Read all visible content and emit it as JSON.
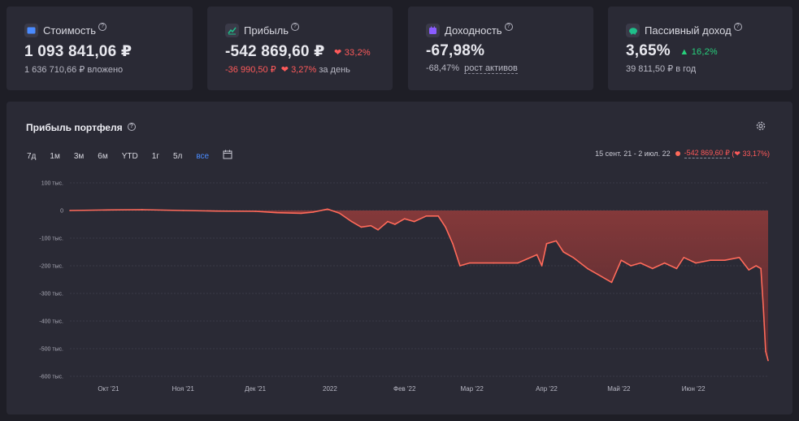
{
  "cards": [
    {
      "title": "Стоимость",
      "value": "1 093 841,06 ₽",
      "sub": "1 636 710,66 ₽ вложено",
      "icon": "wallet-icon",
      "icon_color": "#4a8bff"
    },
    {
      "title": "Прибыль",
      "value": "-542 869,60 ₽",
      "change": "33,2%",
      "sub_value": "-36 990,50 ₽",
      "sub_change": "3,27%",
      "sub_suffix": "за день",
      "icon": "chart-icon",
      "icon_color": "#1fbf8a"
    },
    {
      "title": "Доходность",
      "value": "-67,98%",
      "sub_value": "-68,47%",
      "sub_link": "рост активов",
      "icon": "calendar-icon",
      "icon_color": "#8a5cff"
    },
    {
      "title": "Пассивный доход",
      "value": "3,65%",
      "change": "16,2%",
      "sub": "39 811,50 ₽ в год",
      "icon": "piggy-bank-icon",
      "icon_color": "#1fbf8a"
    }
  ],
  "panel": {
    "title": "Прибыль портфеля",
    "ranges": [
      "7д",
      "1м",
      "3м",
      "6м",
      "YTD",
      "1г",
      "5л",
      "все"
    ],
    "active_range": "все",
    "summary_period": "15 сент. 21 - 2 июл. 22",
    "summary_value": "-542 869,60 ₽",
    "summary_change": "33,17%"
  },
  "chart_data": {
    "type": "area",
    "y_tick_labels": [
      "100 тыс.",
      "0",
      "-100 тыс.",
      "-200 тыс.",
      "-300 тыс.",
      "-400 тыс.",
      "-500 тыс.",
      "-600 тыс."
    ],
    "x_tick_labels": [
      "Окт '21",
      "Ноя '21",
      "Дек '21",
      "2022",
      "Фев '22",
      "Мар '22",
      "Апр '22",
      "Май '22",
      "Июн '22"
    ],
    "ylim": [
      -600000,
      100000
    ],
    "xlim": [
      "2021-09-15",
      "2022-07-02"
    ],
    "grid": true,
    "color": "#ff6a5a",
    "x": [
      "2021-09-15",
      "2021-10-01",
      "2021-10-15",
      "2021-11-01",
      "2021-11-15",
      "2021-12-01",
      "2021-12-10",
      "2021-12-20",
      "2021-12-25",
      "2021-12-31",
      "2022-01-05",
      "2022-01-10",
      "2022-01-14",
      "2022-01-18",
      "2022-01-21",
      "2022-01-25",
      "2022-01-28",
      "2022-02-01",
      "2022-02-05",
      "2022-02-10",
      "2022-02-15",
      "2022-02-18",
      "2022-02-21",
      "2022-02-24",
      "2022-02-28",
      "2022-03-10",
      "2022-03-20",
      "2022-03-28",
      "2022-03-30",
      "2022-04-01",
      "2022-04-05",
      "2022-04-08",
      "2022-04-12",
      "2022-04-18",
      "2022-04-22",
      "2022-04-28",
      "2022-05-02",
      "2022-05-06",
      "2022-05-10",
      "2022-05-15",
      "2022-05-20",
      "2022-05-25",
      "2022-05-28",
      "2022-06-02",
      "2022-06-08",
      "2022-06-14",
      "2022-06-20",
      "2022-06-24",
      "2022-06-27",
      "2022-06-29",
      "2022-06-30",
      "2022-07-01",
      "2022-07-02"
    ],
    "values": [
      0,
      2000,
      3000,
      0,
      -2000,
      -3000,
      -8000,
      -10000,
      -6000,
      5000,
      -10000,
      -40000,
      -60000,
      -55000,
      -70000,
      -40000,
      -50000,
      -30000,
      -40000,
      -20000,
      -20000,
      -60000,
      -120000,
      -200000,
      -190000,
      -190000,
      -190000,
      -160000,
      -200000,
      -120000,
      -110000,
      -150000,
      -170000,
      -210000,
      -230000,
      -260000,
      -180000,
      -200000,
      -190000,
      -210000,
      -190000,
      -210000,
      -170000,
      -190000,
      -180000,
      -180000,
      -170000,
      -215000,
      -200000,
      -210000,
      -350000,
      -510000,
      -543000
    ]
  }
}
